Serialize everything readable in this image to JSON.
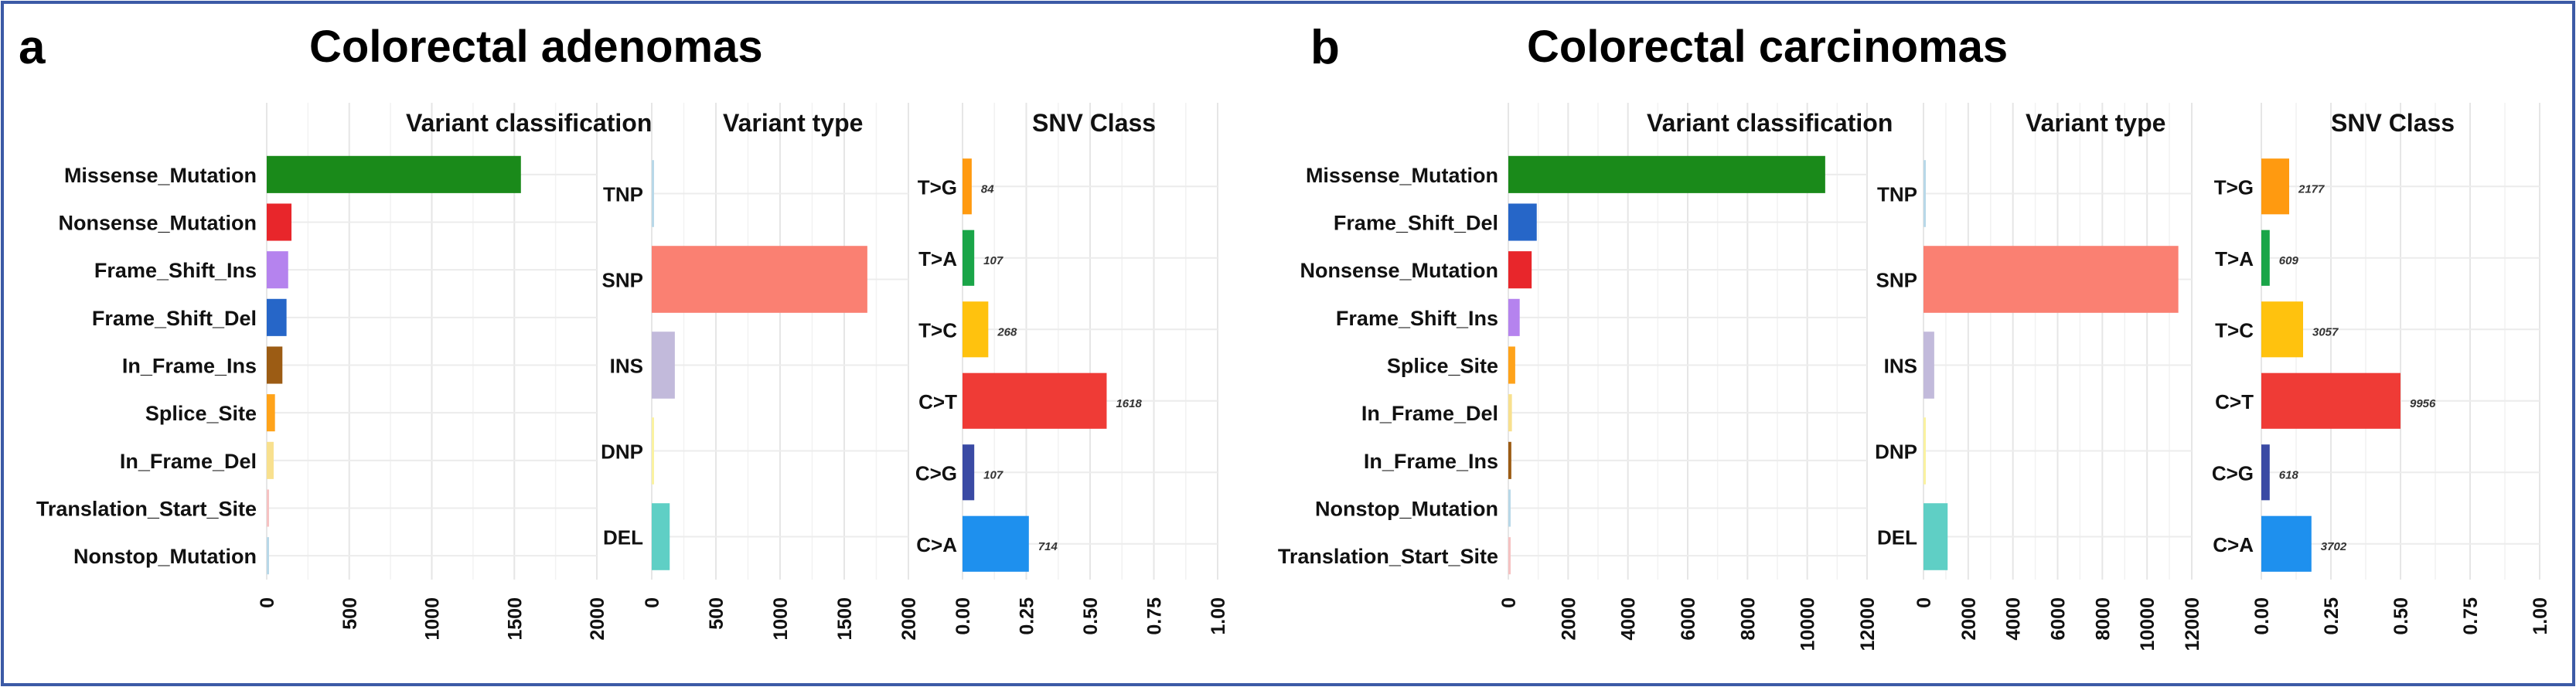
{
  "figure": {
    "panel_a": {
      "label": "a",
      "title": "Colorectal adenomas"
    },
    "panel_b": {
      "label": "b",
      "title": "Colorectal carcinomas"
    },
    "frame_color": "#3c5aa6"
  },
  "chart_data": [
    {
      "id": "a_vc",
      "type": "bar",
      "orientation": "horizontal",
      "title": "Variant classification",
      "xlim": [
        0,
        2000
      ],
      "ticks": [
        0,
        500,
        1000,
        1500,
        2000
      ],
      "tick_labels": [
        "0",
        "500",
        "1000",
        "1500",
        "2000"
      ],
      "categories": [
        "Missense_Mutation",
        "Nonsense_Mutation",
        "Frame_Shift_Ins",
        "Frame_Shift_Del",
        "In_Frame_Ins",
        "Splice_Site",
        "In_Frame_Del",
        "Translation_Start_Site",
        "Nonstop_Mutation"
      ],
      "values": [
        1540,
        150,
        130,
        120,
        95,
        50,
        42,
        10,
        8
      ],
      "colors": [
        "#1a8a1a",
        "#e8262b",
        "#b583ee",
        "#2666c8",
        "#9c5c14",
        "#ffa31a",
        "#f8e08e",
        "#f6c2c2",
        "#b8d8e8"
      ]
    },
    {
      "id": "a_vt",
      "type": "bar",
      "orientation": "horizontal",
      "title": "Variant type",
      "xlim": [
        0,
        2000
      ],
      "ticks": [
        0,
        500,
        1000,
        1500,
        2000
      ],
      "tick_labels": [
        "0",
        "500",
        "1000",
        "1500",
        "2000"
      ],
      "categories": [
        "TNP",
        "SNP",
        "INS",
        "DNP",
        "DEL"
      ],
      "values": [
        8,
        1680,
        180,
        12,
        140
      ],
      "colors": [
        "#b8d8e8",
        "#fa8072",
        "#c2badb",
        "#faf2a0",
        "#5fcfc5"
      ]
    },
    {
      "id": "a_snv",
      "type": "bar",
      "orientation": "horizontal",
      "title": "SNV Class",
      "xlim": [
        0,
        1
      ],
      "ticks": [
        0,
        0.25,
        0.5,
        0.75,
        1
      ],
      "tick_labels": [
        "0.00",
        "0.25",
        "0.50",
        "0.75",
        "1.00"
      ],
      "categories": [
        "T>G",
        "T>A",
        "T>C",
        "C>T",
        "C>G",
        "C>A"
      ],
      "values": [
        0.036,
        0.046,
        0.101,
        0.565,
        0.046,
        0.26
      ],
      "data_labels": [
        "84",
        "107",
        "268",
        "1618",
        "107",
        "714"
      ],
      "colors": [
        "#ff9a10",
        "#1aa548",
        "#ffc20e",
        "#ef3b36",
        "#3a4aa4",
        "#1e90ee"
      ]
    },
    {
      "id": "b_vc",
      "type": "bar",
      "orientation": "horizontal",
      "title": "Variant classification",
      "xlim": [
        0,
        12000
      ],
      "ticks": [
        0,
        2000,
        4000,
        6000,
        8000,
        10000,
        12000
      ],
      "tick_labels": [
        "0",
        "2000",
        "4000",
        "6000",
        "8000",
        "10000",
        "12000"
      ],
      "categories": [
        "Missense_Mutation",
        "Frame_Shift_Del",
        "Nonsense_Mutation",
        "Frame_Shift_Ins",
        "Splice_Site",
        "In_Frame_Del",
        "In_Frame_Ins",
        "Nonstop_Mutation",
        "Translation_Start_Site"
      ],
      "values": [
        10600,
        950,
        780,
        380,
        230,
        120,
        100,
        50,
        40
      ],
      "colors": [
        "#1a8a1a",
        "#2666c8",
        "#e8262b",
        "#b583ee",
        "#ffa31a",
        "#f8e08e",
        "#9c5c14",
        "#b8d8e8",
        "#f6c2c2"
      ]
    },
    {
      "id": "b_vt",
      "type": "bar",
      "orientation": "horizontal",
      "title": "Variant type",
      "xlim": [
        0,
        12000
      ],
      "ticks": [
        0,
        2000,
        4000,
        6000,
        8000,
        10000,
        12000
      ],
      "tick_labels": [
        "0",
        "2000",
        "4000",
        "6000",
        "8000",
        "10000",
        "12000"
      ],
      "categories": [
        "TNP",
        "SNP",
        "INS",
        "DNP",
        "DEL"
      ],
      "values": [
        25,
        11400,
        480,
        45,
        1080
      ],
      "colors": [
        "#b8d8e8",
        "#fa8072",
        "#c2badb",
        "#faf2a0",
        "#5fcfc5"
      ]
    },
    {
      "id": "b_snv",
      "type": "bar",
      "orientation": "horizontal",
      "title": "SNV Class",
      "xlim": [
        0,
        1
      ],
      "ticks": [
        0,
        0.25,
        0.5,
        0.75,
        1
      ],
      "tick_labels": [
        "0.00",
        "0.25",
        "0.50",
        "0.75",
        "1.00"
      ],
      "categories": [
        "T>G",
        "T>A",
        "T>C",
        "C>T",
        "C>G",
        "C>A"
      ],
      "values": [
        0.1,
        0.03,
        0.15,
        0.5,
        0.03,
        0.18
      ],
      "data_labels": [
        "2177",
        "609",
        "3057",
        "9956",
        "618",
        "3702"
      ],
      "colors": [
        "#ff9a10",
        "#1aa548",
        "#ffc20e",
        "#ef3b36",
        "#3a4aa4",
        "#1e90ee"
      ]
    }
  ]
}
